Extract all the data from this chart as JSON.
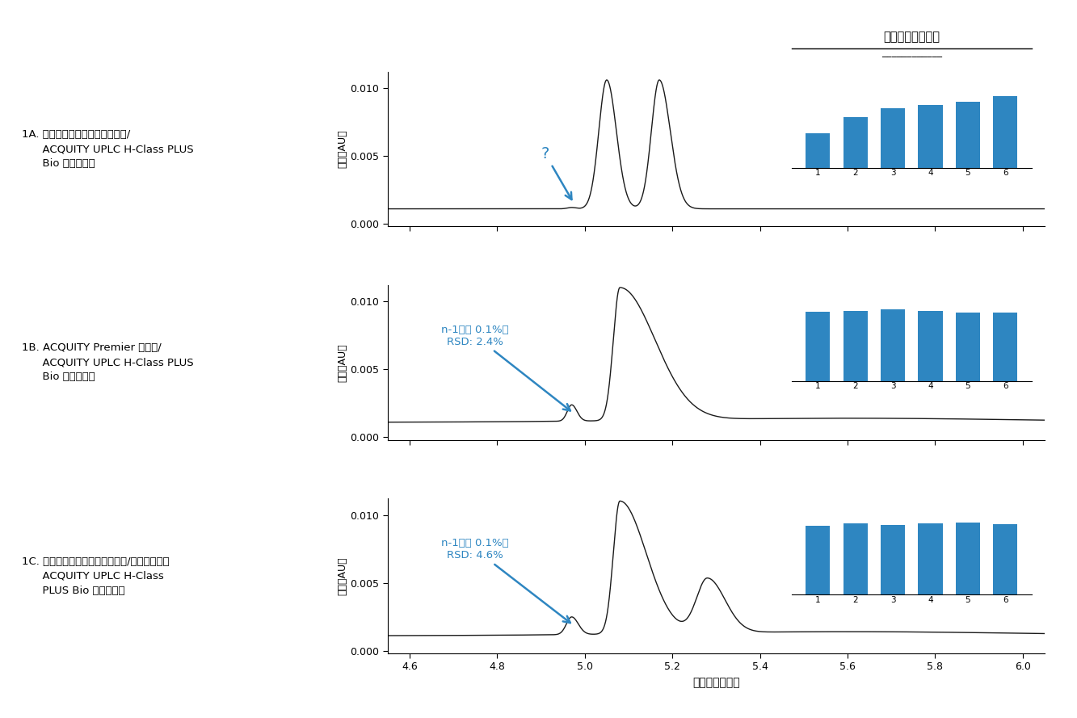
{
  "bg_color": "#ffffff",
  "title_label": "メインピーク面積",
  "xlabel": "保持時間（分）",
  "ylabel": "強度（AU）",
  "xlim": [
    4.55,
    6.05
  ],
  "ylim": [
    -0.0002,
    0.0112
  ],
  "yticks": [
    0.0,
    0.005,
    0.01
  ],
  "xticks": [
    4.6,
    4.8,
    5.0,
    5.2,
    5.4,
    5.6,
    5.8,
    6.0
  ],
  "bar_color": "#2E86C1",
  "line_color": "#1a1a1a",
  "annotation_color": "#2E86C1",
  "panel_labels_line1": [
    "1A. ステンレススチール製カラム/",
    "1B. ACQUITY Premier カラム/",
    "1C. ステンレススチール製カラム/不動態化した"
  ],
  "panel_labels_line2": [
    "      ACQUITY UPLC H-Class PLUS",
    "      ACQUITY UPLC H-Class PLUS",
    "      ACQUITY UPLC H-Class"
  ],
  "panel_labels_line3": [
    "      Bio バイナリー",
    "      Bio バイナリー",
    "      PLUS Bio バイナリー"
  ],
  "inset_bars": [
    [
      0.0043,
      0.0063,
      0.0075,
      0.0079,
      0.0083,
      0.009
    ],
    [
      0.0085,
      0.0086,
      0.0088,
      0.0086,
      0.0084,
      0.0084
    ],
    [
      0.0087,
      0.009,
      0.0088,
      0.009,
      0.0091,
      0.0089
    ]
  ],
  "baseline": 0.0011
}
